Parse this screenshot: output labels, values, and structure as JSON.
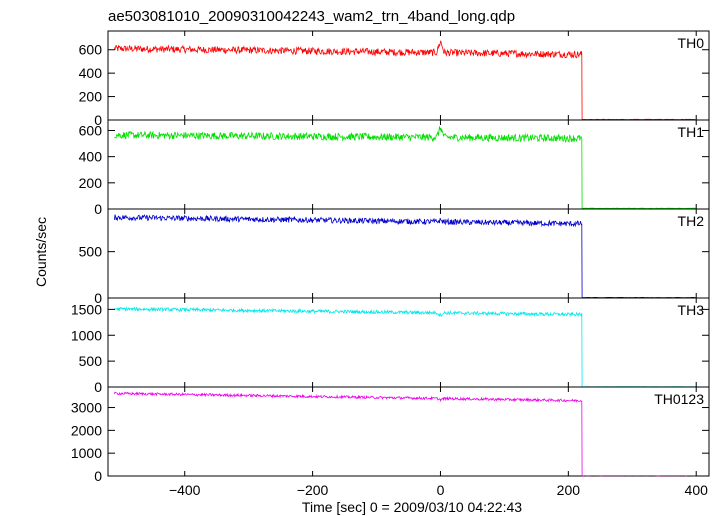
{
  "chart_data": {
    "type": "line",
    "title": "ae503081010_20090310042243_wam2_trn_4band_long.qdp",
    "xlabel": "Time [sec] 0 = 2009/03/10 04:22:43",
    "ylabel": "Counts/sec",
    "xlim": [
      -520,
      420
    ],
    "x_ticks": [
      -400,
      -200,
      0,
      200,
      400
    ],
    "data_x_range": [
      -510,
      400
    ],
    "drop_time": 221,
    "grid": false,
    "legend": "none",
    "panels": [
      {
        "name": "TH0",
        "color": "#ff0000",
        "ylim": [
          0,
          760
        ],
        "y_ticks": [
          0,
          200,
          400,
          600
        ],
        "level_start": 610,
        "level_end": 560,
        "noise": 30,
        "spike_value": 720,
        "after_value": 5
      },
      {
        "name": "TH1",
        "color": "#00e000",
        "ylim": [
          0,
          680
        ],
        "y_ticks": [
          0,
          200,
          400,
          600
        ],
        "level_start": 565,
        "level_end": 540,
        "noise": 28,
        "spike_value": 650,
        "after_value": 5
      },
      {
        "name": "TH2",
        "color": "#0000cc",
        "ylim": [
          0,
          960
        ],
        "y_ticks": [
          0,
          500
        ],
        "level_start": 870,
        "level_end": 800,
        "noise": 30,
        "spike_value": 890,
        "after_value": 5
      },
      {
        "name": "TH3",
        "color": "#00e8e8",
        "ylim": [
          0,
          1720
        ],
        "y_ticks": [
          0,
          500,
          1000,
          1500
        ],
        "level_start": 1510,
        "level_end": 1400,
        "noise": 32,
        "spike_value": 1460,
        "after_value": 5
      },
      {
        "name": "TH0123",
        "color": "#ee00ee",
        "ylim": [
          0,
          3900
        ],
        "y_ticks": [
          0,
          1000,
          2000,
          3000
        ],
        "level_start": 3620,
        "level_end": 3300,
        "noise": 55,
        "spike_value": 3560,
        "after_value": 15
      }
    ]
  }
}
